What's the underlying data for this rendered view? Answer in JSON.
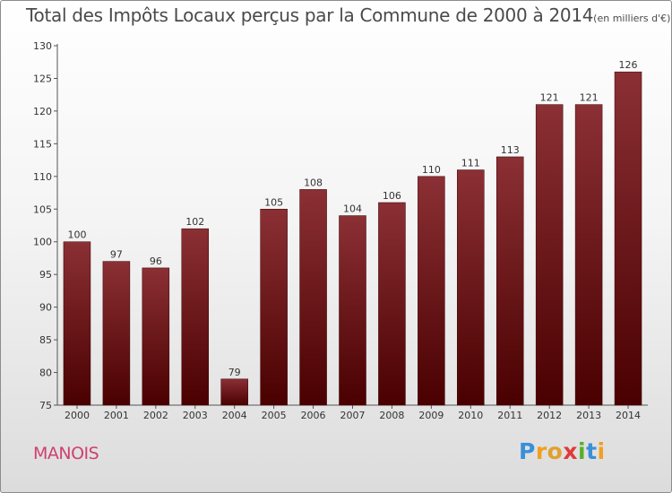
{
  "header": {
    "title": "Total des Impôts Locaux perçus par la Commune de 2000 à 2014",
    "subtitle": "(en milliers d'€)"
  },
  "footer": {
    "commune": "MANOIS",
    "logo_letters": [
      {
        "char": "P",
        "color": "#3a8fd8"
      },
      {
        "char": "r",
        "color": "#f0a020"
      },
      {
        "char": "o",
        "color": "#e0a030"
      },
      {
        "char": "x",
        "color": "#e03a3a"
      },
      {
        "char": "i",
        "color": "#58b028"
      },
      {
        "char": "t",
        "color": "#3a8fd8"
      },
      {
        "char": "i",
        "color": "#f0a020"
      }
    ]
  },
  "chart_data": {
    "type": "bar",
    "categories": [
      "2000",
      "2001",
      "2002",
      "2003",
      "2004",
      "2005",
      "2006",
      "2007",
      "2008",
      "2009",
      "2010",
      "2011",
      "2012",
      "2013",
      "2014"
    ],
    "values": [
      100,
      97,
      96,
      102,
      79,
      105,
      108,
      104,
      106,
      110,
      111,
      113,
      121,
      121,
      126
    ],
    "ylim": [
      75,
      130
    ],
    "yticks": [
      75,
      80,
      85,
      90,
      95,
      100,
      105,
      110,
      115,
      120,
      125,
      130
    ],
    "grid": false,
    "bar_color_top": "#8b3035",
    "bar_color_bottom": "#4a0000"
  }
}
